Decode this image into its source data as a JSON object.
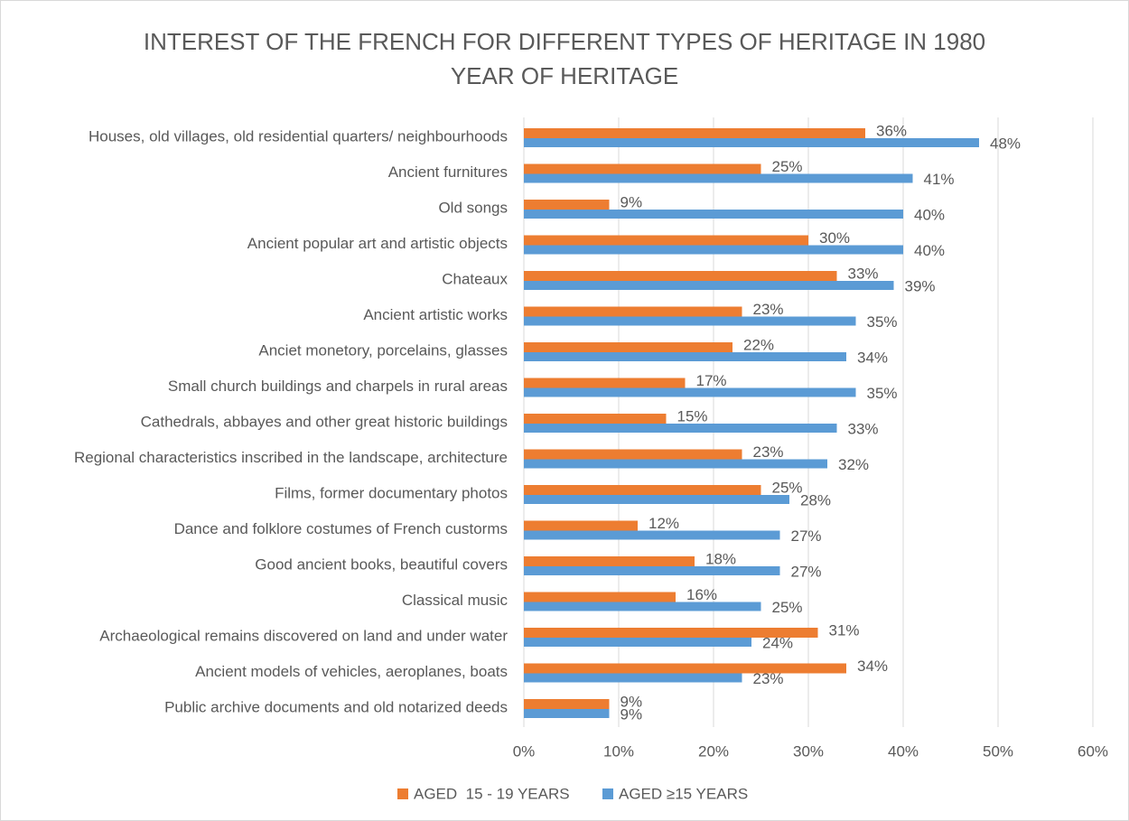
{
  "chart_data": {
    "type": "barh",
    "title": [
      "INTEREST OF THE FRENCH FOR DIFFERENT TYPES OF HERITAGE IN 1980",
      "YEAR OF HERITAGE"
    ],
    "categories": [
      "Houses, old villages, old residential quarters/ neighbourhoods",
      "Ancient furnitures",
      "Old songs",
      "Ancient popular art and artistic objects",
      "Chateaux",
      "Ancient artistic works",
      "Anciet monetory, porcelains, glasses",
      "Small church buildings and charpels in rural areas",
      "Cathedrals, abbayes and other great historic buildings",
      "Regional characteristics inscribed in the landscape, architecture",
      "Films, former documentary photos",
      "Dance and folklore costumes of French custorms",
      "Good ancient books, beautiful covers",
      "Classical music",
      "Archaeological remains discovered on land and under water",
      "Ancient models of vehicles, aeroplanes, boats",
      "Public archive documents and old notarized deeds"
    ],
    "series": [
      {
        "name": "AGED  15 - 19 YEARS",
        "color": "#ed7d31",
        "values": [
          36,
          25,
          9,
          30,
          33,
          23,
          22,
          17,
          15,
          23,
          25,
          12,
          18,
          16,
          31,
          34,
          9
        ],
        "value_labels": [
          "36%",
          "25%",
          "9%",
          "30%",
          "33%",
          "23%",
          "22%",
          "17%",
          "15%",
          "23%",
          "25%",
          "12%",
          "18%",
          "16%",
          "31%",
          "34%",
          "9%"
        ]
      },
      {
        "name": "AGED ≥15 YEARS",
        "color": "#5b9bd5",
        "values": [
          48,
          41,
          40,
          40,
          39,
          35,
          34,
          35,
          33,
          32,
          28,
          27,
          27,
          25,
          24,
          23,
          9
        ],
        "value_labels": [
          "48%",
          "41%",
          "40%",
          "40%",
          "39%",
          "35%",
          "34%",
          "35%",
          "33%",
          "32%",
          "28%",
          "27%",
          "27%",
          "25%",
          "24%",
          "23%",
          "9%"
        ]
      }
    ],
    "xlim": [
      0,
      60
    ],
    "xticks": [
      {
        "value": 0,
        "label": "0%"
      },
      {
        "value": 10,
        "label": "10%"
      },
      {
        "value": 20,
        "label": "20%"
      },
      {
        "value": 30,
        "label": "30%"
      },
      {
        "value": 40,
        "label": "40%"
      },
      {
        "value": 50,
        "label": "50%"
      },
      {
        "value": 60,
        "label": "60%"
      }
    ],
    "grid": true,
    "legend": "bottom"
  }
}
